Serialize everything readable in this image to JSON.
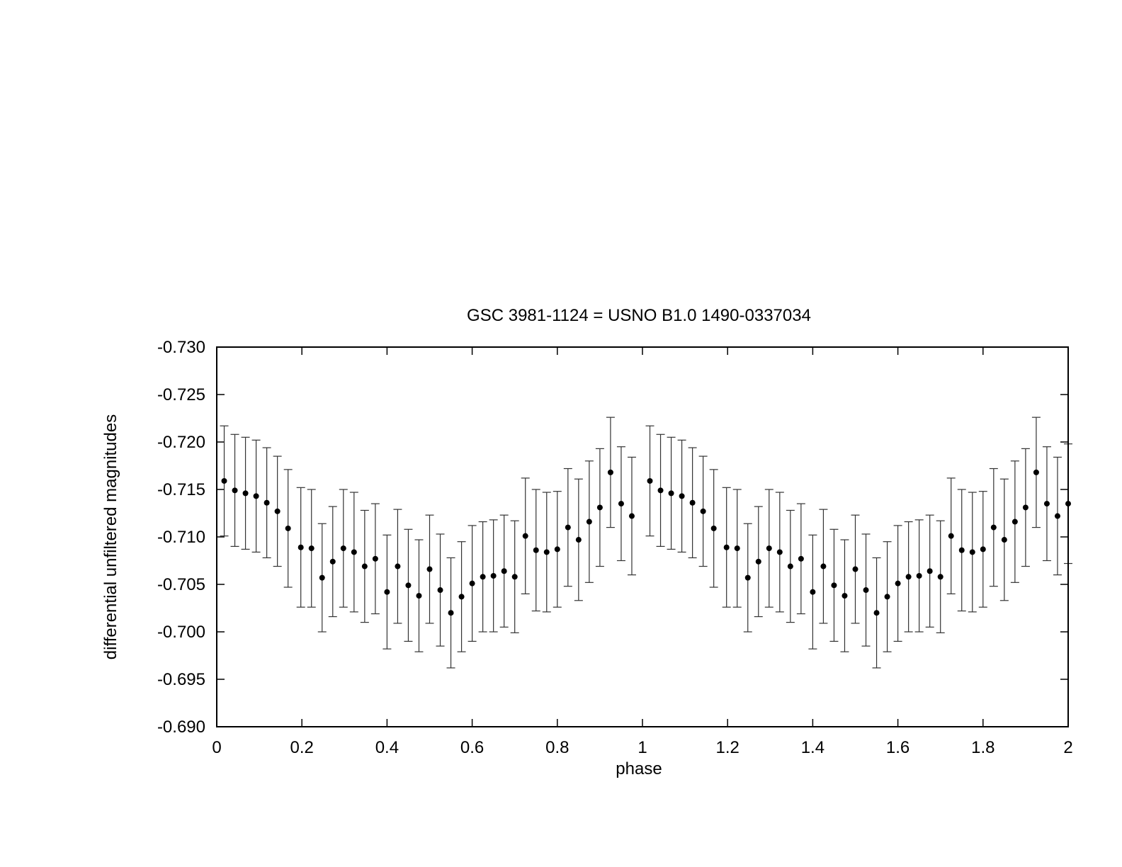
{
  "chart_data": {
    "type": "scatter",
    "title": "GSC 3981-1124 = USNO B1.0 1490-0337034",
    "xlabel": "phase",
    "ylabel": "differential unfiltered magnitudes",
    "xlim": [
      0,
      2
    ],
    "ylim": [
      -0.73,
      -0.69
    ],
    "y_inverted": true,
    "grid": false,
    "x_ticks": [
      "0",
      "0.2",
      "0.4",
      "0.6",
      "0.8",
      "1",
      "1.2",
      "1.4",
      "1.6",
      "1.8",
      "2"
    ],
    "x_tick_values": [
      0,
      0.2,
      0.4,
      0.6,
      0.8,
      1.0,
      1.2,
      1.4,
      1.6,
      1.8,
      2.0
    ],
    "y_ticks": [
      "-0.730",
      "-0.725",
      "-0.720",
      "-0.715",
      "-0.710",
      "-0.705",
      "-0.700",
      "-0.695",
      "-0.690"
    ],
    "y_tick_values": [
      -0.73,
      -0.725,
      -0.72,
      -0.715,
      -0.71,
      -0.705,
      -0.7,
      -0.695,
      -0.69
    ],
    "error_bars": true,
    "series": [
      {
        "x": [
          0.0175,
          0.0425,
          0.0675,
          0.0925,
          0.1175,
          0.1425,
          0.1675,
          0.1975,
          0.2225,
          0.2475,
          0.2725,
          0.2975,
          0.3225,
          0.3475,
          0.3725,
          0.4,
          0.425,
          0.45,
          0.475,
          0.5,
          0.525,
          0.55,
          0.575,
          0.6,
          0.625,
          0.65,
          0.675,
          0.7,
          0.725,
          0.75,
          0.775,
          0.8,
          0.825,
          0.85,
          0.875,
          0.9,
          0.925,
          0.95,
          0.975,
          1.0175,
          1.0425,
          1.0675,
          1.0925,
          1.1175,
          1.1425,
          1.1675,
          1.1975,
          1.2225,
          1.2475,
          1.2725,
          1.2975,
          1.3225,
          1.3475,
          1.3725,
          1.4,
          1.425,
          1.45,
          1.475,
          1.5,
          1.525,
          1.55,
          1.575,
          1.6,
          1.625,
          1.65,
          1.675,
          1.7,
          1.725,
          1.75,
          1.775,
          1.8,
          1.825,
          1.85,
          1.875,
          1.9,
          1.925,
          1.95,
          1.975,
          2.0
        ],
        "y": [
          -0.7159,
          -0.7149,
          -0.7146,
          -0.7143,
          -0.7136,
          -0.7127,
          -0.7109,
          -0.7089,
          -0.7088,
          -0.7057,
          -0.7074,
          -0.7088,
          -0.7084,
          -0.7069,
          -0.7077,
          -0.7042,
          -0.7069,
          -0.7049,
          -0.7038,
          -0.7066,
          -0.7044,
          -0.702,
          -0.7037,
          -0.7051,
          -0.7058,
          -0.7059,
          -0.7064,
          -0.7058,
          -0.7101,
          -0.7086,
          -0.7084,
          -0.7087,
          -0.711,
          -0.7097,
          -0.7116,
          -0.7131,
          -0.7168,
          -0.7135,
          -0.7122,
          -0.7159,
          -0.7149,
          -0.7146,
          -0.7143,
          -0.7136,
          -0.7127,
          -0.7109,
          -0.7089,
          -0.7088,
          -0.7057,
          -0.7074,
          -0.7088,
          -0.7084,
          -0.7069,
          -0.7077,
          -0.7042,
          -0.7069,
          -0.7049,
          -0.7038,
          -0.7066,
          -0.7044,
          -0.702,
          -0.7037,
          -0.7051,
          -0.7058,
          -0.7059,
          -0.7064,
          -0.7058,
          -0.7101,
          -0.7086,
          -0.7084,
          -0.7087,
          -0.711,
          -0.7097,
          -0.7116,
          -0.7131,
          -0.7168,
          -0.7135,
          -0.7122,
          -0.7135
        ],
        "err": [
          0.0058,
          0.0059,
          0.0059,
          0.0059,
          0.0058,
          0.0058,
          0.0062,
          0.0063,
          0.0062,
          0.0057,
          0.0058,
          0.0062,
          0.0063,
          0.0059,
          0.0058,
          0.006,
          0.006,
          0.0059,
          0.0059,
          0.0057,
          0.0059,
          0.0058,
          0.0058,
          0.0061,
          0.0058,
          0.0059,
          0.0059,
          0.0059,
          0.0061,
          0.0064,
          0.0063,
          0.0061,
          0.0062,
          0.0064,
          0.0064,
          0.0062,
          0.0058,
          0.006,
          0.0062,
          0.0058,
          0.0059,
          0.0059,
          0.0059,
          0.0058,
          0.0058,
          0.0062,
          0.0063,
          0.0062,
          0.0057,
          0.0058,
          0.0062,
          0.0063,
          0.0059,
          0.0058,
          0.006,
          0.006,
          0.0059,
          0.0059,
          0.0057,
          0.0059,
          0.0058,
          0.0058,
          0.0061,
          0.0058,
          0.0059,
          0.0059,
          0.0059,
          0.0061,
          0.0064,
          0.0063,
          0.0061,
          0.0062,
          0.0064,
          0.0064,
          0.0062,
          0.0058,
          0.006,
          0.0062,
          0.0063
        ]
      }
    ]
  }
}
